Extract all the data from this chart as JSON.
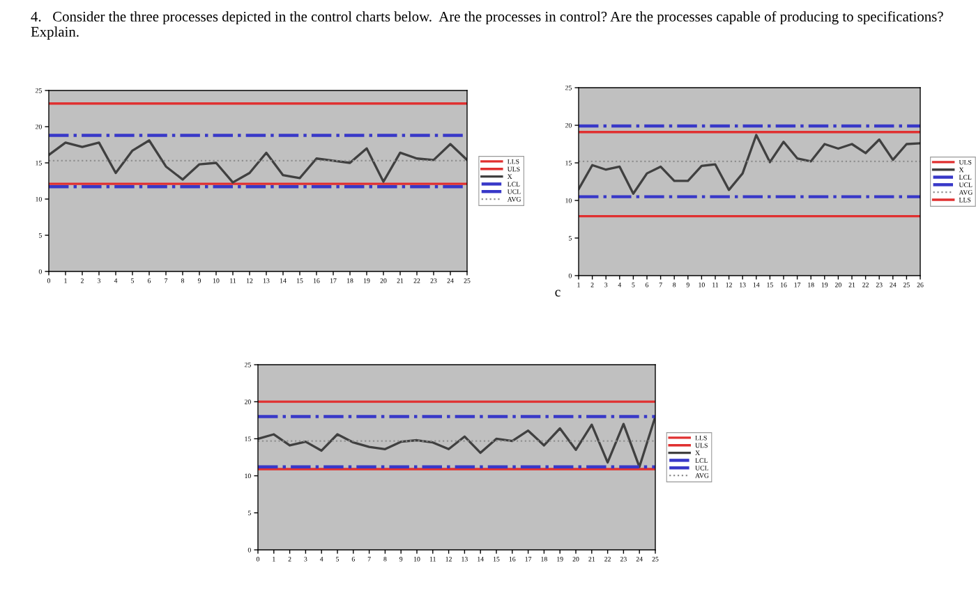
{
  "chart_data": [
    {
      "type": "line",
      "title": "4.   Consider the three processes depicted in the control charts below.  Are the processes in control? Are the processes capable of producing to specifications? Explain.",
      "xlim": [
        0,
        25
      ],
      "xticks": [
        0,
        1,
        2,
        3,
        4,
        5,
        6,
        7,
        8,
        9,
        10,
        11,
        12,
        13,
        14,
        15,
        16,
        17,
        18,
        19,
        20,
        21,
        22,
        23,
        24,
        25
      ],
      "ylim": [
        0,
        25
      ],
      "yticks": [
        0,
        5,
        10,
        15,
        20,
        25
      ],
      "grid": false,
      "legend": "right",
      "marker": "none",
      "series": [
        {
          "name": "LLS",
          "color": "#e03030",
          "line_style": "solid",
          "x": [
            0,
            25
          ],
          "values": [
            12.1,
            12.1
          ]
        },
        {
          "name": "ULS",
          "color": "#e03030",
          "line_style": "solid",
          "x": [
            0,
            25
          ],
          "values": [
            23.2,
            23.2
          ]
        },
        {
          "name": "X",
          "color": "#404040",
          "line_style": "solid",
          "x": [
            0,
            1,
            2,
            3,
            4,
            5,
            6,
            7,
            8,
            9,
            10,
            11,
            12,
            13,
            14,
            15,
            16,
            17,
            18,
            19,
            20,
            21,
            22,
            23,
            24,
            25
          ],
          "values": [
            16.1,
            17.8,
            17.2,
            17.8,
            13.6,
            16.7,
            18.1,
            14.5,
            12.7,
            14.8,
            15.0,
            12.3,
            13.6,
            16.4,
            13.3,
            12.9,
            15.6,
            15.3,
            15.0,
            17.0,
            12.4,
            16.4,
            15.6,
            15.4,
            17.6,
            15.4
          ]
        },
        {
          "name": "LCL",
          "color": "#3838c8",
          "line_style": "dashdot",
          "x": [
            0,
            25
          ],
          "values": [
            11.7,
            11.7
          ]
        },
        {
          "name": "UCL",
          "color": "#3838c8",
          "line_style": "dashdot",
          "x": [
            0,
            25
          ],
          "values": [
            18.8,
            18.8
          ]
        },
        {
          "name": "AVG",
          "color": "#909090",
          "line_style": "dotted",
          "x": [
            0,
            25
          ],
          "values": [
            15.3,
            15.3
          ]
        }
      ]
    },
    {
      "type": "line",
      "annotations": [
        {
          "text": "c"
        }
      ],
      "xlim": [
        1,
        26
      ],
      "xticks": [
        1,
        2,
        3,
        4,
        5,
        6,
        7,
        8,
        9,
        10,
        11,
        12,
        13,
        14,
        15,
        16,
        17,
        18,
        19,
        20,
        21,
        22,
        23,
        24,
        25,
        26
      ],
      "ylim": [
        0,
        25
      ],
      "yticks": [
        0,
        5,
        10,
        15,
        20,
        25
      ],
      "grid": false,
      "legend": "right",
      "marker": "none",
      "series": [
        {
          "name": "ULS",
          "color": "#e03030",
          "line_style": "solid",
          "x": [
            1,
            26
          ],
          "values": [
            19.1,
            19.1
          ]
        },
        {
          "name": "X",
          "color": "#404040",
          "line_style": "solid",
          "x": [
            1,
            2,
            3,
            4,
            5,
            6,
            7,
            8,
            9,
            10,
            11,
            12,
            13,
            14,
            15,
            16,
            17,
            18,
            19,
            20,
            21,
            22,
            23,
            24,
            25,
            26
          ],
          "values": [
            11.5,
            14.7,
            14.1,
            14.5,
            10.9,
            13.6,
            14.5,
            12.6,
            12.6,
            14.6,
            14.8,
            11.4,
            13.6,
            18.7,
            15.1,
            17.8,
            15.6,
            15.2,
            17.5,
            16.9,
            17.5,
            16.3,
            18.1,
            15.4,
            17.5,
            17.6
          ]
        },
        {
          "name": "LCL",
          "color": "#3838c8",
          "line_style": "dashdot",
          "x": [
            1,
            26
          ],
          "values": [
            10.5,
            10.5
          ]
        },
        {
          "name": "UCL",
          "color": "#3838c8",
          "line_style": "dashdot",
          "x": [
            1,
            26
          ],
          "values": [
            19.9,
            19.9
          ]
        },
        {
          "name": "AVG",
          "color": "#909090",
          "line_style": "dotted",
          "x": [
            1,
            26
          ],
          "values": [
            15.2,
            15.2
          ]
        },
        {
          "name": "LLS",
          "color": "#e03030",
          "line_style": "solid",
          "x": [
            1,
            26
          ],
          "values": [
            7.9,
            7.9
          ]
        }
      ]
    },
    {
      "type": "line",
      "xlim": [
        0,
        25
      ],
      "xticks": [
        0,
        1,
        2,
        3,
        4,
        5,
        6,
        7,
        8,
        9,
        10,
        11,
        12,
        13,
        14,
        15,
        16,
        17,
        18,
        19,
        20,
        21,
        22,
        23,
        24,
        25
      ],
      "ylim": [
        0,
        25
      ],
      "yticks": [
        0,
        5,
        10,
        15,
        20,
        25
      ],
      "grid": false,
      "legend": "right",
      "marker": "none",
      "series": [
        {
          "name": "LLS",
          "color": "#e03030",
          "line_style": "solid",
          "x": [
            0,
            25
          ],
          "values": [
            10.9,
            10.9
          ]
        },
        {
          "name": "ULS",
          "color": "#e03030",
          "line_style": "solid",
          "x": [
            0,
            25
          ],
          "values": [
            20.0,
            20.0
          ]
        },
        {
          "name": "X",
          "color": "#404040",
          "line_style": "solid",
          "x": [
            0,
            1,
            2,
            3,
            4,
            5,
            6,
            7,
            8,
            9,
            10,
            11,
            12,
            13,
            14,
            15,
            16,
            17,
            18,
            19,
            20,
            21,
            22,
            23,
            24,
            25
          ],
          "values": [
            15.0,
            15.6,
            14.1,
            14.6,
            13.4,
            15.6,
            14.5,
            13.9,
            13.6,
            14.6,
            14.8,
            14.5,
            13.6,
            15.3,
            13.1,
            15.0,
            14.7,
            16.1,
            14.1,
            16.4,
            13.5,
            16.9,
            11.8,
            17.0,
            11.2,
            18.0
          ]
        },
        {
          "name": "LCL",
          "color": "#3838c8",
          "line_style": "dashdot",
          "x": [
            0,
            25
          ],
          "values": [
            11.2,
            11.2
          ]
        },
        {
          "name": "UCL",
          "color": "#3838c8",
          "line_style": "dashdot",
          "x": [
            0,
            25
          ],
          "values": [
            18.0,
            18.0
          ]
        },
        {
          "name": "AVG",
          "color": "#909090",
          "line_style": "dotted",
          "x": [
            0,
            25
          ],
          "values": [
            14.7,
            14.7
          ]
        }
      ]
    }
  ]
}
